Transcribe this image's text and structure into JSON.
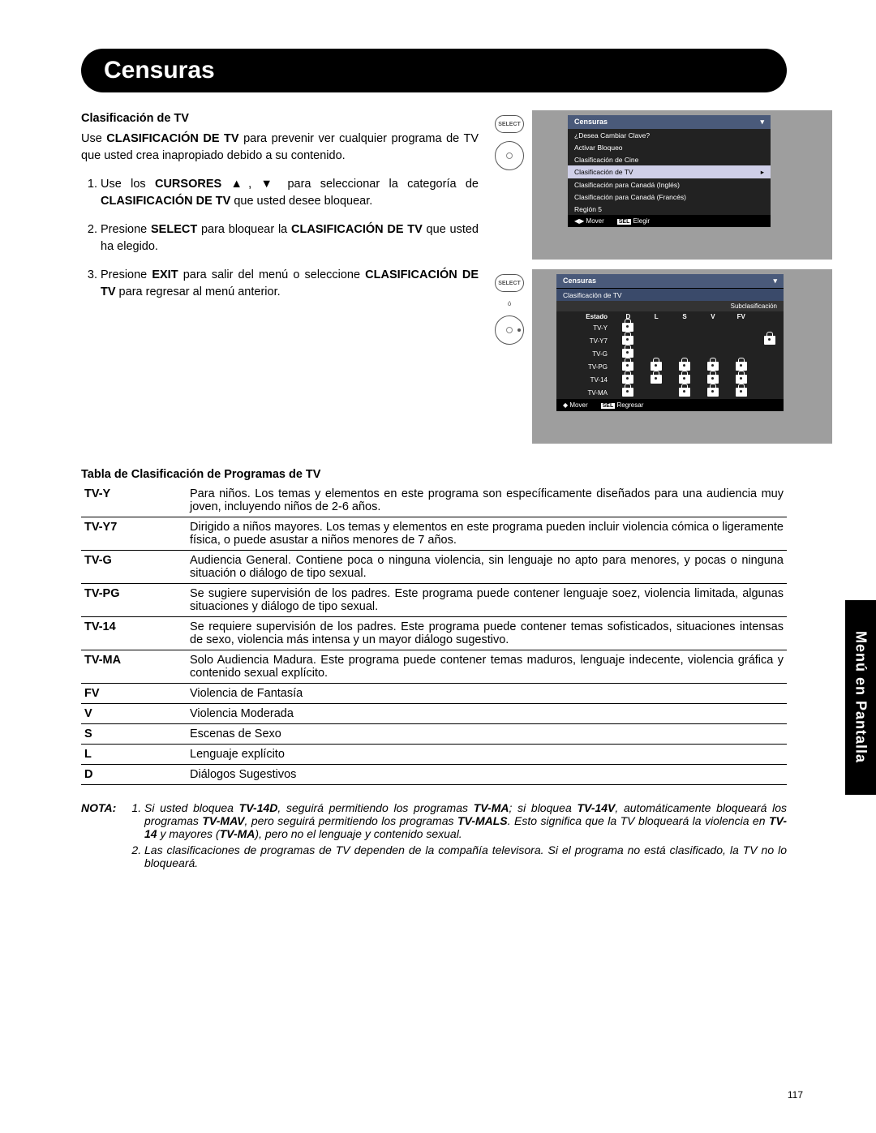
{
  "header": "Censuras",
  "side_tab": "Menú en Pantalla",
  "page_number": "117",
  "intro": {
    "heading": "Clasificación de TV",
    "paragraph": "Use CLASIFICACIÓN DE TV para prevenir ver cualquier programa de TV que usted crea inapropiado debido a su contenido.",
    "steps": [
      "Use los <b>CURSORES</b> ▲, ▼ para seleccionar la categoría de <b>CLASIFICACIÓN DE TV</b> que usted desee bloquear.",
      "Presione <b>SELECT</b> para bloquear la <b>CLASIFICACIÓN DE TV</b> que usted ha elegido.",
      "Presione <b>EXIT</b> para salir del menú o seleccione <b>CLASIFICACIÓN DE TV</b> para regresar al menú anterior."
    ]
  },
  "osd1": {
    "select_label": "SELECT",
    "title": "Censuras",
    "items": [
      "¿Desea Cambiar Clave?",
      "Activar Bloqueo",
      "Clasificación de Cine",
      "Clasificación de TV",
      "Clasificación para Canadá (Inglés)",
      "Clasificación para Canadá (Francés)",
      "Región 5"
    ],
    "hl_index": 3,
    "footer_move": "Mover",
    "footer_sel": "SEL",
    "footer_elegir": "Elegir"
  },
  "osd2": {
    "select_label": "SELECT",
    "or_label": "ó",
    "title": "Censuras",
    "subtitle": "Clasificación de TV",
    "subhead": "Subclasificación",
    "cols": [
      "Estado",
      "D",
      "L",
      "S",
      "V",
      "FV"
    ],
    "rows": [
      {
        "label": "TV-Y",
        "locks": [
          1,
          0,
          0,
          0,
          0,
          0
        ]
      },
      {
        "label": "TV-Y7",
        "locks": [
          1,
          0,
          0,
          0,
          0,
          1
        ]
      },
      {
        "label": "TV-G",
        "locks": [
          1,
          0,
          0,
          0,
          0,
          0
        ]
      },
      {
        "label": "TV-PG",
        "locks": [
          1,
          1,
          1,
          1,
          1,
          0
        ]
      },
      {
        "label": "TV-14",
        "locks": [
          1,
          1,
          1,
          1,
          1,
          0
        ]
      },
      {
        "label": "TV-MA",
        "locks": [
          1,
          0,
          1,
          1,
          1,
          0
        ]
      }
    ],
    "footer_move": "Mover",
    "footer_sel": "SEL",
    "footer_reg": "Regresar"
  },
  "ratings_heading": "Tabla de Clasificación de Programas de TV",
  "ratings": [
    {
      "code": "TV-Y",
      "desc": "Para niños. Los temas y elementos en este programa son específicamente diseñados para una audiencia muy joven, incluyendo niños de 2-6 años."
    },
    {
      "code": "TV-Y7",
      "desc": "Dirigido a niños mayores. Los temas y elementos en este programa pueden incluir violencia cómica o ligeramente física, o puede asustar a niños menores de 7 años."
    },
    {
      "code": "TV-G",
      "desc": "Audiencia General. Contiene poca o ninguna violencia, sin lenguaje no apto para menores, y pocas o ninguna situación o diálogo de tipo sexual."
    },
    {
      "code": "TV-PG",
      "desc": "Se sugiere supervisión de los padres. Este programa puede contener lenguaje soez, violencia limitada, algunas situaciones y diálogo de tipo sexual."
    },
    {
      "code": "TV-14",
      "desc": "Se requiere supervisión de los padres. Este programa puede contener temas sofisticados, situaciones intensas de sexo, violencia más intensa y un mayor diálogo sugestivo."
    },
    {
      "code": "TV-MA",
      "desc": "Solo Audiencia Madura. Este programa puede contener temas maduros, lenguaje indecente, violencia gráfica y contenido sexual explícito."
    }
  ],
  "subratings": [
    {
      "code": "FV",
      "desc": "Violencia de Fantasía"
    },
    {
      "code": "V",
      "desc": "Violencia Moderada"
    },
    {
      "code": "S",
      "desc": "Escenas de Sexo"
    },
    {
      "code": "L",
      "desc": "Lenguaje explícito"
    },
    {
      "code": "D",
      "desc": "Diálogos Sugestivos"
    }
  ],
  "nota_label": "NOTA:",
  "nota_items": [
    "Si usted bloquea <b>TV-14D</b>, seguirá permitiendo los programas <b>TV-MA</b>; si bloquea <b>TV-14V</b>, automáticamente bloqueará los programas <b>TV-MAV</b>, pero seguirá permitiendo los programas <b>TV-MALS</b>. Esto significa que la TV bloqueará la violencia en <b>TV-14</b> y mayores (<b>TV-MA</b>), pero no el lenguaje y contenido sexual.",
    "Las clasificaciones de programas de TV dependen de la compañía televisora. Si el programa no está clasificado, la TV no lo bloqueará."
  ]
}
